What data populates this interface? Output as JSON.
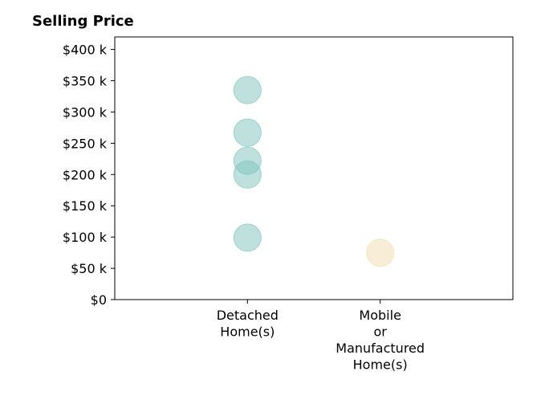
{
  "chart_data": {
    "type": "scatter",
    "title": "Selling Price",
    "xlabel": "",
    "ylabel": "",
    "categories": [
      [
        "Detached",
        "Home(s)"
      ],
      [
        "Mobile",
        "or",
        "Manufactured",
        "Home(s)"
      ]
    ],
    "xlim": [
      -1,
      2
    ],
    "ylim": [
      0,
      420000
    ],
    "yticks": [
      0,
      50000,
      100000,
      150000,
      200000,
      250000,
      300000,
      350000,
      400000
    ],
    "ytick_labels": [
      "$0",
      "$50 k",
      "$100 k",
      "$150 k",
      "$200 k",
      "$250 k",
      "$300 k",
      "$350 k",
      "$400 k"
    ],
    "grid": false,
    "series": [
      {
        "category": 0,
        "color": "#7fc4bb",
        "values": [
          335000,
          267000,
          222000,
          200000,
          99000
        ]
      },
      {
        "category": 1,
        "color": "#f2deb0",
        "values": [
          75000
        ]
      }
    ]
  }
}
